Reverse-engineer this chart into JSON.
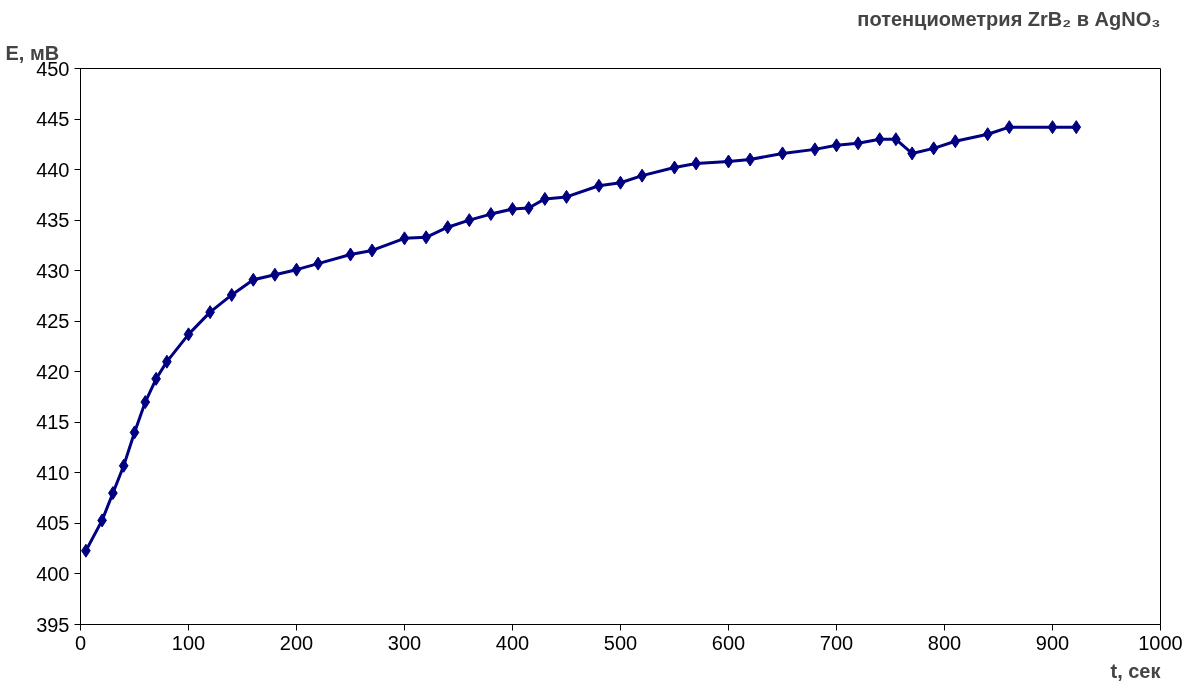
{
  "chart_data": {
    "type": "line",
    "title": "потенциометрия ZrB₂ в AgNO₃",
    "xlabel": "t, сек",
    "ylabel": "E, мВ",
    "xlim": [
      0,
      1000
    ],
    "xticks": [
      0,
      100,
      200,
      300,
      400,
      500,
      600,
      700,
      800,
      900,
      1000
    ],
    "ylim": [
      395,
      450
    ],
    "yticks": [
      395,
      400,
      405,
      410,
      415,
      420,
      425,
      430,
      435,
      440,
      445,
      450
    ],
    "grid": false,
    "marker": "diamond",
    "line_style": "solid",
    "x": [
      5,
      20,
      30,
      40,
      50,
      60,
      70,
      80,
      100,
      120,
      140,
      160,
      180,
      200,
      220,
      250,
      270,
      300,
      320,
      340,
      360,
      380,
      400,
      415,
      430,
      450,
      480,
      500,
      520,
      550,
      570,
      600,
      620,
      650,
      680,
      700,
      720,
      740,
      755,
      770,
      790,
      810,
      840,
      860,
      900,
      922
    ],
    "series": [
      {
        "color": "#000080",
        "values": [
          402.3,
          405.3,
          408,
          410.7,
          414,
          417,
          419.3,
          421,
          423.7,
          425.9,
          427.6,
          429.1,
          429.6,
          430.1,
          430.7,
          431.6,
          432,
          433.2,
          433.3,
          434.3,
          435,
          435.6,
          436.1,
          436.2,
          437.1,
          437.3,
          438.4,
          438.7,
          439.4,
          440.2,
          440.6,
          440.8,
          441,
          441.6,
          442,
          442.4,
          442.6,
          443,
          443,
          441.6,
          442.1,
          442.8,
          443.5,
          444.2,
          444.2,
          444.2
        ]
      }
    ]
  }
}
